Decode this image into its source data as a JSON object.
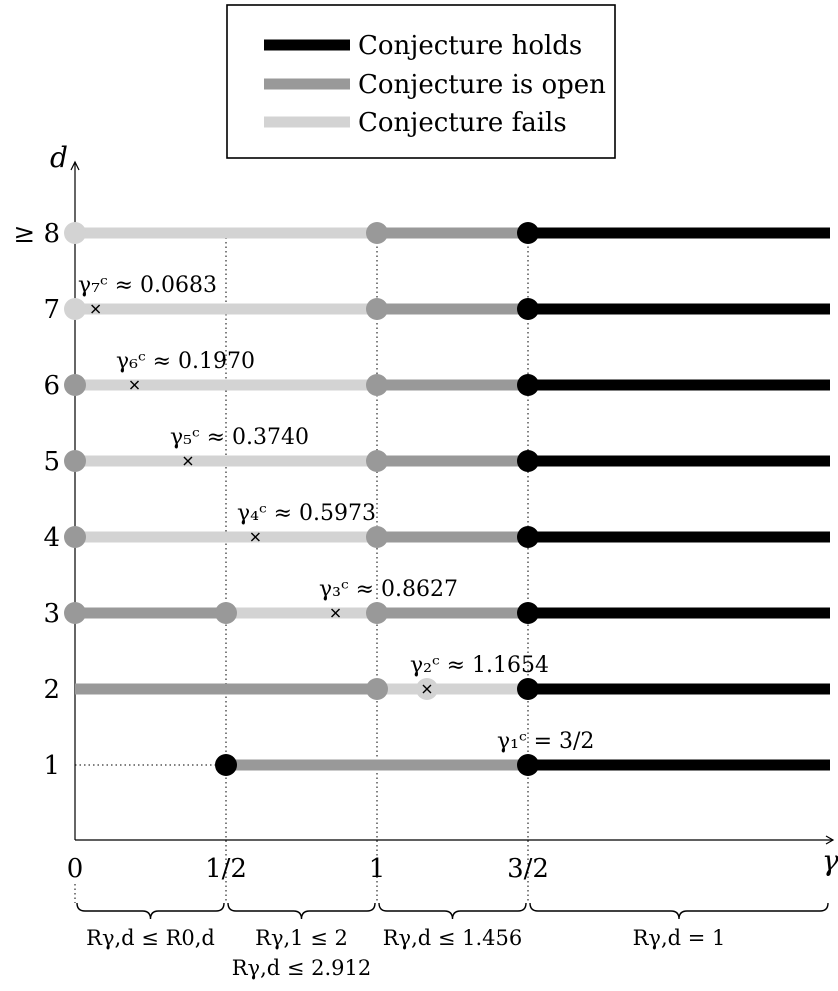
{
  "legend": {
    "items": [
      {
        "label": "Conjecture holds",
        "status": "holds"
      },
      {
        "label": "Conjecture is open",
        "status": "open"
      },
      {
        "label": "Conjecture fails",
        "status": "fails"
      }
    ]
  },
  "colors": {
    "holds": "#000000",
    "open": "#999999",
    "fails": "#d3d3d3"
  },
  "axes": {
    "x_label": "γ",
    "y_label": "d",
    "x_ticks": [
      {
        "value": 0,
        "label": "0"
      },
      {
        "value": 0.5,
        "label": "1/2"
      },
      {
        "value": 1,
        "label": "1"
      },
      {
        "value": 1.5,
        "label": "3/2"
      }
    ],
    "y_ticks": [
      {
        "value": 1,
        "label": "1"
      },
      {
        "value": 2,
        "label": "2"
      },
      {
        "value": 3,
        "label": "3"
      },
      {
        "value": 4,
        "label": "4"
      },
      {
        "value": 5,
        "label": "5"
      },
      {
        "value": 6,
        "label": "6"
      },
      {
        "value": 7,
        "label": "7"
      },
      {
        "value": 8,
        "label": "≥ 8"
      }
    ]
  },
  "rows": [
    {
      "d": 1,
      "segments": [
        {
          "from": 0.5,
          "to": 1.5,
          "status": "open"
        },
        {
          "from": 1.5,
          "to": 2.5,
          "status": "holds"
        }
      ],
      "points": [
        {
          "at": 0.5,
          "status": "holds"
        },
        {
          "at": 1.5,
          "status": "holds"
        }
      ],
      "critical": {
        "label": "γ₁ᶜ = 3/2",
        "value": 1.5
      }
    },
    {
      "d": 2,
      "segments": [
        {
          "from": 0,
          "to": 1,
          "status": "open"
        },
        {
          "from": 1,
          "to": 1.5,
          "status": "fails"
        },
        {
          "from": 1.5,
          "to": 2.5,
          "status": "holds"
        }
      ],
      "points": [
        {
          "at": 1,
          "status": "open"
        },
        {
          "at": 1.1654,
          "status": "fails"
        },
        {
          "at": 1.5,
          "status": "holds"
        }
      ],
      "critical": {
        "label": "γ₂ᶜ ≈ 1.1654",
        "value": 1.1654
      }
    },
    {
      "d": 3,
      "segments": [
        {
          "from": 0,
          "to": 0.5,
          "status": "open"
        },
        {
          "from": 0.5,
          "to": 1,
          "status": "fails"
        },
        {
          "from": 1,
          "to": 1.5,
          "status": "open"
        },
        {
          "from": 1.5,
          "to": 2.5,
          "status": "holds"
        }
      ],
      "points": [
        {
          "at": 0,
          "status": "open"
        },
        {
          "at": 0.5,
          "status": "open"
        },
        {
          "at": 1,
          "status": "open"
        },
        {
          "at": 1.5,
          "status": "holds"
        }
      ],
      "critical": {
        "label": "γ₃ᶜ ≈ 0.8627",
        "value": 0.8627
      }
    },
    {
      "d": 4,
      "segments": [
        {
          "from": 0,
          "to": 1,
          "status": "fails"
        },
        {
          "from": 1,
          "to": 1.5,
          "status": "open"
        },
        {
          "from": 1.5,
          "to": 2.5,
          "status": "holds"
        }
      ],
      "points": [
        {
          "at": 0,
          "status": "open"
        },
        {
          "at": 1,
          "status": "open"
        },
        {
          "at": 1.5,
          "status": "holds"
        }
      ],
      "critical": {
        "label": "γ₄ᶜ ≈ 0.5973",
        "value": 0.5973
      }
    },
    {
      "d": 5,
      "segments": [
        {
          "from": 0,
          "to": 1,
          "status": "fails"
        },
        {
          "from": 1,
          "to": 1.5,
          "status": "open"
        },
        {
          "from": 1.5,
          "to": 2.5,
          "status": "holds"
        }
      ],
      "points": [
        {
          "at": 0,
          "status": "open"
        },
        {
          "at": 1,
          "status": "open"
        },
        {
          "at": 1.5,
          "status": "holds"
        }
      ],
      "critical": {
        "label": "γ₅ᶜ ≈ 0.3740",
        "value": 0.374
      }
    },
    {
      "d": 6,
      "segments": [
        {
          "from": 0,
          "to": 1,
          "status": "fails"
        },
        {
          "from": 1,
          "to": 1.5,
          "status": "open"
        },
        {
          "from": 1.5,
          "to": 2.5,
          "status": "holds"
        }
      ],
      "points": [
        {
          "at": 0,
          "status": "open"
        },
        {
          "at": 1,
          "status": "open"
        },
        {
          "at": 1.5,
          "status": "holds"
        }
      ],
      "critical": {
        "label": "γ₆ᶜ ≈ 0.1970",
        "value": 0.197
      }
    },
    {
      "d": 7,
      "segments": [
        {
          "from": 0,
          "to": 1,
          "status": "fails"
        },
        {
          "from": 1,
          "to": 1.5,
          "status": "open"
        },
        {
          "from": 1.5,
          "to": 2.5,
          "status": "holds"
        }
      ],
      "points": [
        {
          "at": 0,
          "status": "fails"
        },
        {
          "at": 1,
          "status": "open"
        },
        {
          "at": 1.5,
          "status": "holds"
        }
      ],
      "critical": {
        "label": "γ₇ᶜ ≈ 0.0683",
        "value": 0.0683
      }
    },
    {
      "d": 8,
      "segments": [
        {
          "from": 0,
          "to": 1,
          "status": "fails"
        },
        {
          "from": 1,
          "to": 1.5,
          "status": "open"
        },
        {
          "from": 1.5,
          "to": 2.5,
          "status": "holds"
        }
      ],
      "points": [
        {
          "at": 0,
          "status": "fails"
        },
        {
          "at": 1,
          "status": "open"
        },
        {
          "at": 1.5,
          "status": "holds"
        }
      ],
      "critical": null
    }
  ],
  "braces": [
    {
      "from": 0,
      "to": 0.5,
      "lines": [
        "Rγ,d ≤ R0,d"
      ]
    },
    {
      "from": 0.5,
      "to": 1,
      "lines": [
        "Rγ,1 ≤ 2",
        "Rγ,d ≤ 2.912"
      ]
    },
    {
      "from": 1,
      "to": 1.5,
      "lines": [
        "Rγ,d ≤ 1.456"
      ]
    },
    {
      "from": 1.5,
      "to": 2.5,
      "lines": [
        "Rγ,d = 1"
      ]
    }
  ]
}
